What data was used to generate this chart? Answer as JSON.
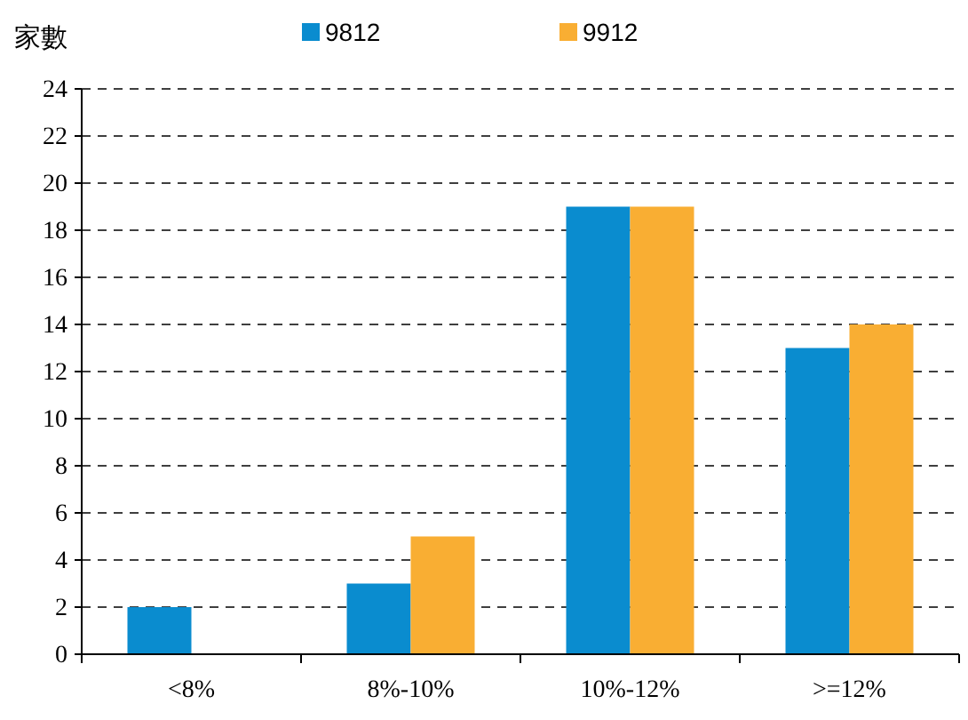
{
  "chart_data": {
    "type": "bar",
    "ylabel": "家數",
    "categories": [
      "<8%",
      "8%-10%",
      "10%-12%",
      ">=12%"
    ],
    "series": [
      {
        "name": "9812",
        "color": "#0a8ccf",
        "values": [
          2,
          3,
          19,
          13
        ]
      },
      {
        "name": "9912",
        "color": "#f9ae33",
        "values": [
          0,
          5,
          19,
          14
        ]
      }
    ],
    "ylim": [
      0,
      24
    ],
    "yticks": [
      0,
      2,
      4,
      6,
      8,
      10,
      12,
      14,
      16,
      18,
      20,
      22,
      24
    ],
    "grid": "y",
    "legend": "top"
  }
}
